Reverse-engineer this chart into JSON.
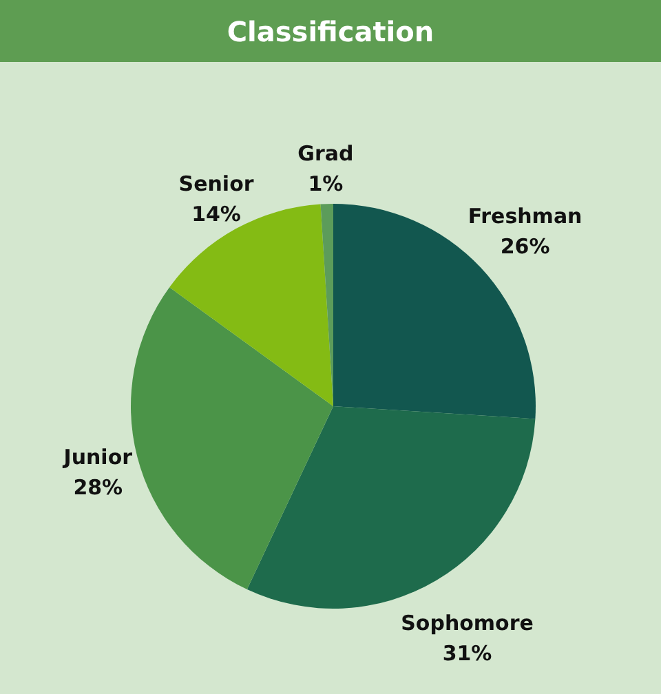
{
  "chart_data": {
    "type": "pie",
    "title": "Classification",
    "categories": [
      "Freshman",
      "Sophomore",
      "Junior",
      "Senior",
      "Grad"
    ],
    "values": [
      26,
      31,
      28,
      14,
      1
    ],
    "value_labels": [
      "26%",
      "31%",
      "28%",
      "14%",
      "1%"
    ],
    "colors": [
      "#12574f",
      "#1e6b4c",
      "#4b9448",
      "#84bb14",
      "#5c9c5a"
    ]
  }
}
